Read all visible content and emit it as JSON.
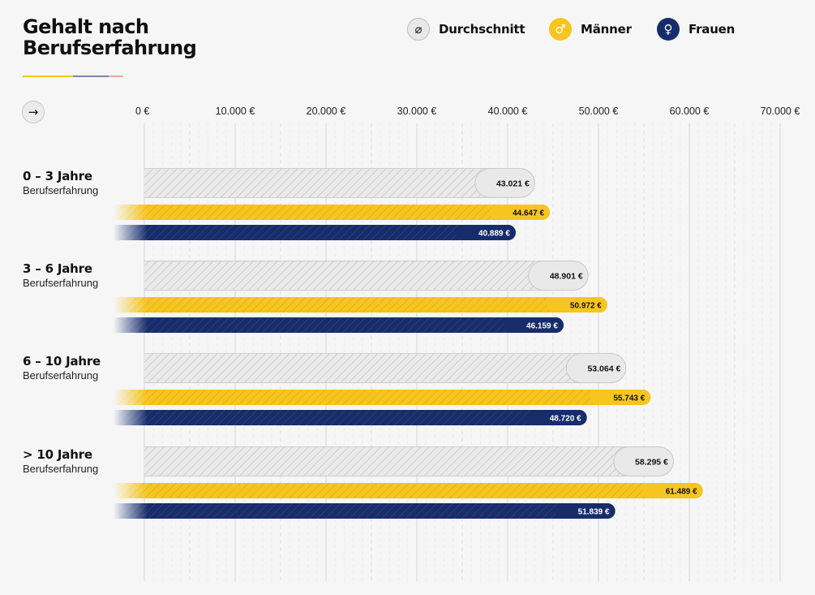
{
  "title_lines": [
    "Gehalt nach",
    "Berufserfahrung"
  ],
  "accent_colors": [
    "#f6c520",
    "#7b86b8",
    "#f0a898"
  ],
  "navigation": {
    "arrow_icon": "arrow-right-icon"
  },
  "legend": [
    {
      "label": "Durchschnitt",
      "icon": "average-icon",
      "glyph": "⌀",
      "color": "#e8e8e8"
    },
    {
      "label": "Männer",
      "icon": "male-icon",
      "glyph": "♂",
      "color": "#f6c520"
    },
    {
      "label": "Frauen",
      "icon": "female-icon",
      "glyph": "♀",
      "color": "#172d6b"
    }
  ],
  "chart_data": {
    "type": "bar",
    "orientation": "horizontal",
    "title": "Gehalt nach Berufserfahrung",
    "xlim": [
      0,
      70000
    ],
    "x_ticks": [
      0,
      10000,
      20000,
      30000,
      40000,
      50000,
      60000,
      70000
    ],
    "x_tick_labels": [
      "0 €",
      "10.000 €",
      "20.000 €",
      "30.000 €",
      "40.000 €",
      "50.000 €",
      "60.000 €",
      "70.000 €"
    ],
    "grid": true,
    "legend_position": "top-right",
    "categories": [
      {
        "title": "0 – 3 Jahre",
        "subtitle": "Berufserfahrung"
      },
      {
        "title": "3 – 6 Jahre",
        "subtitle": "Berufserfahrung"
      },
      {
        "title": "6 – 10 Jahre",
        "subtitle": "Berufserfahrung"
      },
      {
        "title": "> 10 Jahre",
        "subtitle": "Berufserfahrung"
      }
    ],
    "series": [
      {
        "name": "Durchschnitt",
        "color": "#e8e8e8",
        "values": [
          43021,
          48901,
          53064,
          58295
        ],
        "labels": [
          "43.021 €",
          "48.901 €",
          "53.064 €",
          "58.295 €"
        ]
      },
      {
        "name": "Männer",
        "color": "#f6c520",
        "values": [
          44647,
          50972,
          55743,
          61489
        ],
        "labels": [
          "44.647 €",
          "50.972 €",
          "55.743 €",
          "61.489 €"
        ]
      },
      {
        "name": "Frauen",
        "color": "#172d6b",
        "values": [
          40889,
          46159,
          48720,
          51839
        ],
        "labels": [
          "40.889 €",
          "46.159 €",
          "48.720 €",
          "51.839 €"
        ]
      }
    ]
  }
}
